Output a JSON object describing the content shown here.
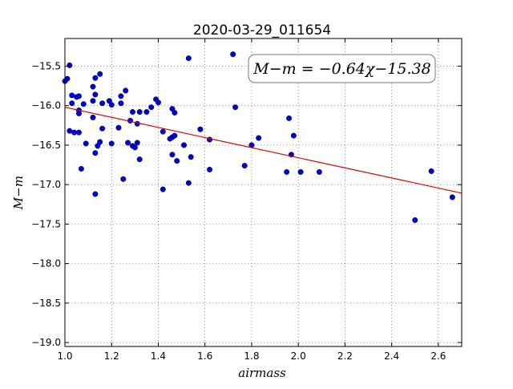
{
  "chart_data": {
    "type": "scatter",
    "title": "2020-03-29_011654",
    "xlabel": "airmass",
    "ylabel": "M−m",
    "xlim": [
      1.0,
      2.7
    ],
    "ylim": [
      -19.05,
      -15.15
    ],
    "x_ticks": [
      1.0,
      1.2,
      1.4,
      1.6,
      1.8,
      2.0,
      2.2,
      2.4,
      2.6
    ],
    "x_tick_labels": [
      "1.0",
      "1.2",
      "1.4",
      "1.6",
      "1.8",
      "2.0",
      "2.2",
      "2.4",
      "2.6"
    ],
    "y_ticks": [
      -15.5,
      -16.0,
      -16.5,
      -17.0,
      -17.5,
      -18.0,
      -18.5,
      -19.0
    ],
    "y_tick_labels": [
      "−15.5",
      "−16.0",
      "−16.5",
      "−17.0",
      "−17.5",
      "−18.0",
      "−18.5",
      "−19.0"
    ],
    "grid": true,
    "annotation": "M−m = −0.64χ−15.38",
    "point_color": "#0000cc",
    "fit_color": "#dd0000",
    "fit": {
      "slope": -0.64,
      "intercept": -15.38
    },
    "points": [
      {
        "x": 1.0,
        "y": -15.69
      },
      {
        "x": 1.01,
        "y": -15.66
      },
      {
        "x": 1.02,
        "y": -15.49
      },
      {
        "x": 1.02,
        "y": -16.32
      },
      {
        "x": 1.03,
        "y": -15.87
      },
      {
        "x": 1.03,
        "y": -15.97
      },
      {
        "x": 1.04,
        "y": -16.34
      },
      {
        "x": 1.05,
        "y": -15.89
      },
      {
        "x": 1.06,
        "y": -15.88
      },
      {
        "x": 1.06,
        "y": -16.06
      },
      {
        "x": 1.06,
        "y": -16.1
      },
      {
        "x": 1.06,
        "y": -16.34
      },
      {
        "x": 1.07,
        "y": -16.8
      },
      {
        "x": 1.08,
        "y": -15.98
      },
      {
        "x": 1.09,
        "y": -16.48
      },
      {
        "x": 1.12,
        "y": -15.94
      },
      {
        "x": 1.12,
        "y": -16.15
      },
      {
        "x": 1.12,
        "y": -15.76
      },
      {
        "x": 1.13,
        "y": -15.65
      },
      {
        "x": 1.13,
        "y": -15.86
      },
      {
        "x": 1.13,
        "y": -16.6
      },
      {
        "x": 1.13,
        "y": -17.12
      },
      {
        "x": 1.14,
        "y": -16.51
      },
      {
        "x": 1.15,
        "y": -16.46
      },
      {
        "x": 1.15,
        "y": -15.6
      },
      {
        "x": 1.16,
        "y": -15.97
      },
      {
        "x": 1.16,
        "y": -16.29
      },
      {
        "x": 1.19,
        "y": -15.94
      },
      {
        "x": 1.2,
        "y": -15.99
      },
      {
        "x": 1.2,
        "y": -16.48
      },
      {
        "x": 1.23,
        "y": -16.28
      },
      {
        "x": 1.24,
        "y": -15.88
      },
      {
        "x": 1.24,
        "y": -15.97
      },
      {
        "x": 1.25,
        "y": -16.93
      },
      {
        "x": 1.26,
        "y": -15.81
      },
      {
        "x": 1.27,
        "y": -16.47
      },
      {
        "x": 1.28,
        "y": -16.19
      },
      {
        "x": 1.29,
        "y": -16.08
      },
      {
        "x": 1.29,
        "y": -16.51
      },
      {
        "x": 1.3,
        "y": -16.53
      },
      {
        "x": 1.31,
        "y": -16.47
      },
      {
        "x": 1.31,
        "y": -16.23
      },
      {
        "x": 1.32,
        "y": -16.08
      },
      {
        "x": 1.32,
        "y": -16.68
      },
      {
        "x": 1.35,
        "y": -16.08
      },
      {
        "x": 1.37,
        "y": -16.02
      },
      {
        "x": 1.39,
        "y": -15.92
      },
      {
        "x": 1.4,
        "y": -15.96
      },
      {
        "x": 1.42,
        "y": -16.33
      },
      {
        "x": 1.42,
        "y": -17.06
      },
      {
        "x": 1.45,
        "y": -16.42
      },
      {
        "x": 1.46,
        "y": -16.04
      },
      {
        "x": 1.46,
        "y": -16.4
      },
      {
        "x": 1.46,
        "y": -16.62
      },
      {
        "x": 1.47,
        "y": -16.38
      },
      {
        "x": 1.47,
        "y": -16.09
      },
      {
        "x": 1.48,
        "y": -16.7
      },
      {
        "x": 1.51,
        "y": -16.5
      },
      {
        "x": 1.53,
        "y": -16.98
      },
      {
        "x": 1.53,
        "y": -15.4
      },
      {
        "x": 1.54,
        "y": -16.65
      },
      {
        "x": 1.58,
        "y": -16.3
      },
      {
        "x": 1.62,
        "y": -16.43
      },
      {
        "x": 1.62,
        "y": -16.81
      },
      {
        "x": 1.72,
        "y": -15.35
      },
      {
        "x": 1.73,
        "y": -16.02
      },
      {
        "x": 1.77,
        "y": -16.76
      },
      {
        "x": 1.8,
        "y": -16.5
      },
      {
        "x": 1.83,
        "y": -16.41
      },
      {
        "x": 1.95,
        "y": -16.84
      },
      {
        "x": 1.96,
        "y": -16.16
      },
      {
        "x": 1.97,
        "y": -16.62
      },
      {
        "x": 1.98,
        "y": -16.38
      },
      {
        "x": 2.01,
        "y": -16.84
      },
      {
        "x": 2.09,
        "y": -16.84
      },
      {
        "x": 2.5,
        "y": -17.45
      },
      {
        "x": 2.57,
        "y": -16.83
      },
      {
        "x": 2.66,
        "y": -17.16
      }
    ]
  }
}
